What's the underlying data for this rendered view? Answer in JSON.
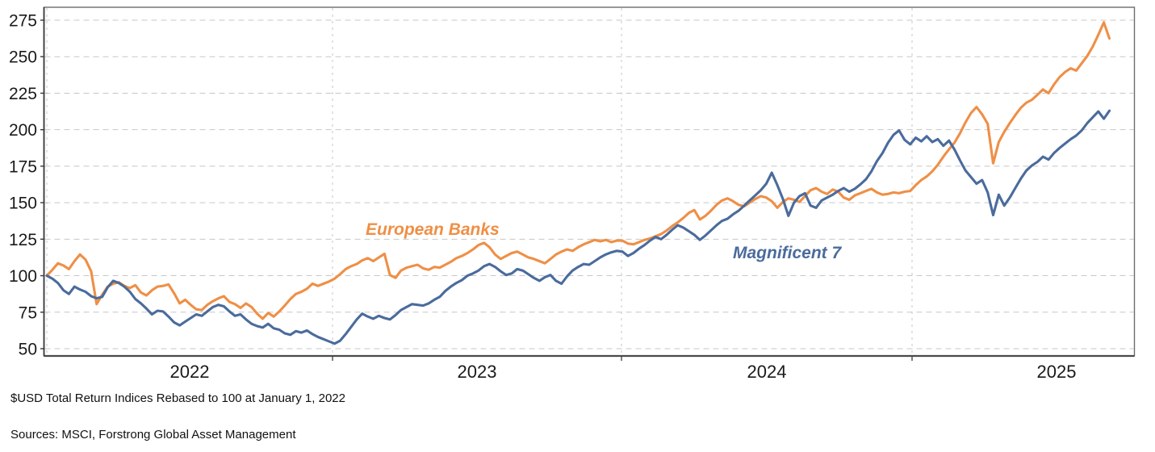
{
  "page": {
    "note_rebase": "$USD Total Return Indices Rebased to 100 at January 1, 2022",
    "note_sources": "Sources: MSCI, Forstrong Global Asset Management"
  },
  "chart_data": {
    "type": "line",
    "frequency": "weekly",
    "rebase_note": "Rebased to 100 at January 1, 2022",
    "x_axis": {
      "tick_labels": [
        "2022",
        "2023",
        "2024",
        "2025"
      ]
    },
    "y_axis": {
      "tick_labels": [
        "275",
        "250",
        "225",
        "200",
        "175",
        "150",
        "125",
        "100",
        "75",
        "50"
      ],
      "range": [
        50,
        275
      ]
    },
    "grid": true,
    "legend_position": "inline-labels",
    "colors": {
      "european_banks": "#EF8F46",
      "magnificent_7": "#4A6B9C",
      "gridline": "#c7c7c7",
      "axis": "#4a4a4a"
    },
    "series": [
      {
        "name": "European Banks",
        "color": "#EF8F46",
        "values": [
          100,
          104,
          108.5,
          107,
          104.5,
          110,
          114.5,
          111,
          103,
          80.5,
          87,
          92.5,
          94.5,
          95.5,
          93,
          91.5,
          93.5,
          88.5,
          86.5,
          90,
          92.5,
          93,
          94,
          88,
          81,
          83.5,
          80,
          77,
          76.5,
          80,
          82.5,
          84.5,
          86,
          82,
          80.5,
          78,
          81,
          78.5,
          74,
          70.5,
          74.5,
          72,
          75.5,
          79.5,
          84,
          87.5,
          89,
          91,
          94.5,
          93,
          94.5,
          96,
          98,
          101,
          104.5,
          106.5,
          108,
          110.5,
          112,
          110,
          112.5,
          115,
          100.5,
          98.5,
          103.5,
          105.5,
          106.5,
          107.5,
          105,
          104,
          106,
          105.5,
          107.5,
          109.5,
          112,
          113.5,
          115.5,
          118,
          121,
          122.5,
          119.5,
          114.5,
          111.5,
          113.5,
          115.5,
          116.5,
          114.5,
          112.5,
          111.5,
          110,
          108.5,
          111.5,
          114.5,
          116.5,
          118,
          117,
          119.5,
          121.5,
          123,
          124.5,
          123.5,
          124.5,
          123,
          124,
          124,
          122,
          121.5,
          123,
          124.5,
          125.5,
          127,
          128.5,
          131,
          134,
          136.5,
          139.5,
          143,
          145,
          138.5,
          141,
          144.5,
          148.5,
          151.5,
          153,
          151,
          148.5,
          147.5,
          150,
          152.5,
          154.5,
          153.5,
          151,
          146.5,
          150.5,
          153,
          152,
          150.5,
          154.5,
          158.5,
          160,
          157.5,
          156,
          159,
          157.5,
          153.5,
          152,
          155,
          156.5,
          158,
          159.5,
          157,
          155.5,
          156,
          157,
          156.5,
          157.5,
          158,
          162,
          165.5,
          168,
          171.5,
          176,
          181.5,
          186.5,
          191,
          197.5,
          205,
          211.5,
          215.5,
          210.5,
          204,
          177,
          191.5,
          198.5,
          204.5,
          210,
          215,
          218.5,
          220.5,
          224,
          227.5,
          225,
          231,
          236,
          239.5,
          242,
          240.5,
          245.5,
          250.5,
          257,
          265,
          273.5,
          262.5
        ]
      },
      {
        "name": "Magnificent 7",
        "color": "#4A6B9C",
        "values": [
          100,
          98,
          95,
          90,
          87.5,
          92.5,
          90.5,
          89,
          86,
          84.5,
          85.5,
          92,
          96.5,
          95,
          92.5,
          89,
          84,
          81,
          77.5,
          73.5,
          76,
          75.5,
          72,
          68,
          66,
          68.5,
          71,
          73.5,
          72.5,
          75.5,
          78.5,
          80,
          79,
          75.5,
          72.5,
          73.5,
          70,
          67,
          65.5,
          64.5,
          67,
          64,
          63,
          60.5,
          59.5,
          62,
          61,
          62.5,
          60,
          58,
          56.5,
          55,
          53.5,
          55.5,
          60,
          65,
          70,
          74,
          72,
          70.5,
          72.5,
          71,
          70,
          73,
          76.5,
          78.5,
          80.5,
          80,
          79.5,
          81,
          83.5,
          85.5,
          89.5,
          92.5,
          95,
          97,
          100,
          101.5,
          103.5,
          106.5,
          108,
          106,
          103,
          100.5,
          101.5,
          104.5,
          103.5,
          101,
          98.5,
          96.5,
          99,
          100.5,
          96.5,
          94.5,
          99.5,
          103.5,
          106,
          108,
          107.5,
          110,
          112.5,
          114.5,
          116,
          117,
          116.5,
          113.5,
          115.5,
          118.5,
          121,
          124,
          126.5,
          125,
          128,
          131.5,
          134.5,
          133,
          130.5,
          128,
          124.5,
          127.5,
          131,
          134.5,
          137.5,
          139,
          142,
          144.5,
          148,
          151.5,
          155,
          158.5,
          163,
          170.5,
          162,
          152.5,
          141,
          150,
          154.5,
          156.5,
          148,
          146.5,
          151.5,
          153.5,
          155.5,
          158,
          160,
          157.5,
          159.5,
          162.5,
          166,
          171.5,
          178.5,
          184,
          191,
          196.5,
          199.5,
          193,
          190,
          194.5,
          192,
          195.5,
          191.5,
          193.5,
          189,
          192.5,
          186.5,
          179,
          172,
          167.5,
          163,
          165.5,
          157,
          141.5,
          155.5,
          148,
          153.5,
          160,
          166.5,
          172,
          175.5,
          178,
          181.5,
          179.5,
          184,
          187.5,
          190.5,
          193.5,
          196,
          199.5,
          204.5,
          208.5,
          212.5,
          207.5,
          213
        ]
      }
    ]
  }
}
